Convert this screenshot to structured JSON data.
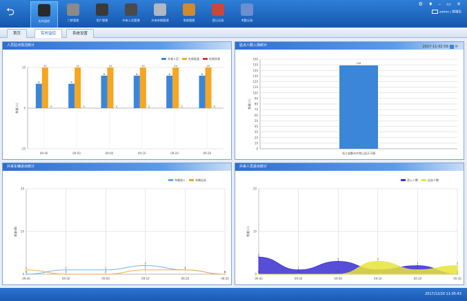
{
  "nav": [
    {
      "label": "实时监控",
      "icon": "monitor-icon",
      "color": "#2a2a2a",
      "active": true
    },
    {
      "label": "门禁管理",
      "icon": "door-icon",
      "color": "#8a8a8a"
    },
    {
      "label": "用户管理",
      "icon": "guard-icon",
      "color": "#3a3a3a"
    },
    {
      "label": "外来人员管理",
      "icon": "person-icon",
      "color": "#4a4a4a"
    },
    {
      "label": "外来车辆管理",
      "icon": "car-icon",
      "color": "#b0b8c4"
    },
    {
      "label": "系统管理",
      "icon": "gear-person-icon",
      "color": "#d08a30"
    },
    {
      "label": "登记记录",
      "icon": "checklist-icon",
      "color": "#c8483a"
    },
    {
      "label": "考勤记录",
      "icon": "document-icon",
      "color": "#6b8fd0"
    }
  ],
  "window_controls": "⚙ ♦ – ▭ ✕",
  "user": {
    "name": "admin",
    "role": "管理员"
  },
  "tabs": [
    "首页",
    "实时监控",
    "系统设置"
  ],
  "panels": {
    "p1": {
      "title": "人员驻点情况统计"
    },
    "p2": {
      "title": "驻点人数入场统计",
      "date": "2017-11-02 09:"
    },
    "p3": {
      "title": "外来车辆进出统计"
    },
    "p4": {
      "title": "外来人员进出统计"
    }
  },
  "clock": "2017/12/20 11:05:43",
  "chart_data": [
    {
      "type": "bar",
      "categories": [
        "09:40",
        "09:50",
        "09:00",
        "09:10",
        "09:20",
        "09:30"
      ],
      "series": [
        {
          "name": "外来人员",
          "color": "#3b86d8",
          "values": [
            6,
            6,
            8,
            8,
            8,
            8
          ]
        },
        {
          "name": "在岗驻留",
          "color": "#f5a623",
          "values": [
            10,
            10,
            10,
            10,
            10,
            10
          ]
        },
        {
          "name": "在岗异常",
          "color": "#d0392b",
          "values": [
            0,
            0,
            0,
            0,
            0,
            0
          ]
        }
      ],
      "ylabel": "数量(人)",
      "ylim": [
        -10,
        10
      ],
      "yticks": [
        -10,
        0,
        10
      ],
      "legend": "top-right",
      "grid": true
    },
    {
      "type": "bar",
      "categories": [
        "浙江省衢州市常山县天马镇"
      ],
      "values": [
        149
      ],
      "color": "#3b86d8",
      "ylabel": "数量(人)",
      "ylim": [
        0,
        160
      ],
      "yticks": [
        0,
        10,
        20,
        30,
        40,
        50,
        60,
        70,
        80,
        90,
        100,
        110,
        120,
        130,
        140,
        150,
        160
      ],
      "grid": true
    },
    {
      "type": "line",
      "x": [
        "09:40",
        "09:50",
        "09:00",
        "09:10",
        "09:20",
        "09:30"
      ],
      "series": [
        {
          "name": "车辆进入",
          "color": "#5aa9e6",
          "values": [
            0,
            1,
            1,
            2,
            1,
            0
          ]
        },
        {
          "name": "车辆出去",
          "color": "#f5a623",
          "values": [
            1,
            0,
            0,
            1,
            1,
            0
          ]
        }
      ],
      "ylabel": "数量(辆)",
      "ylim": [
        0,
        20
      ],
      "yticks": [
        0,
        10,
        20
      ],
      "legend": "top-right",
      "grid": true
    },
    {
      "type": "area",
      "x": [
        "09:40",
        "09:50",
        "09:00",
        "09:10",
        "09:20",
        "09:30"
      ],
      "series": [
        {
          "name": "进入人数",
          "color": "#3a2fd0",
          "values": [
            4,
            1,
            3,
            1,
            2,
            0
          ]
        },
        {
          "name": "出去人数",
          "color": "#e8e43a",
          "values": [
            0,
            0,
            0,
            3,
            1,
            2
          ]
        }
      ],
      "ylabel": "数量(人)",
      "ylim": [
        0,
        20
      ],
      "yticks": [
        0,
        10,
        20
      ],
      "legend": "top-right",
      "grid": true
    }
  ]
}
